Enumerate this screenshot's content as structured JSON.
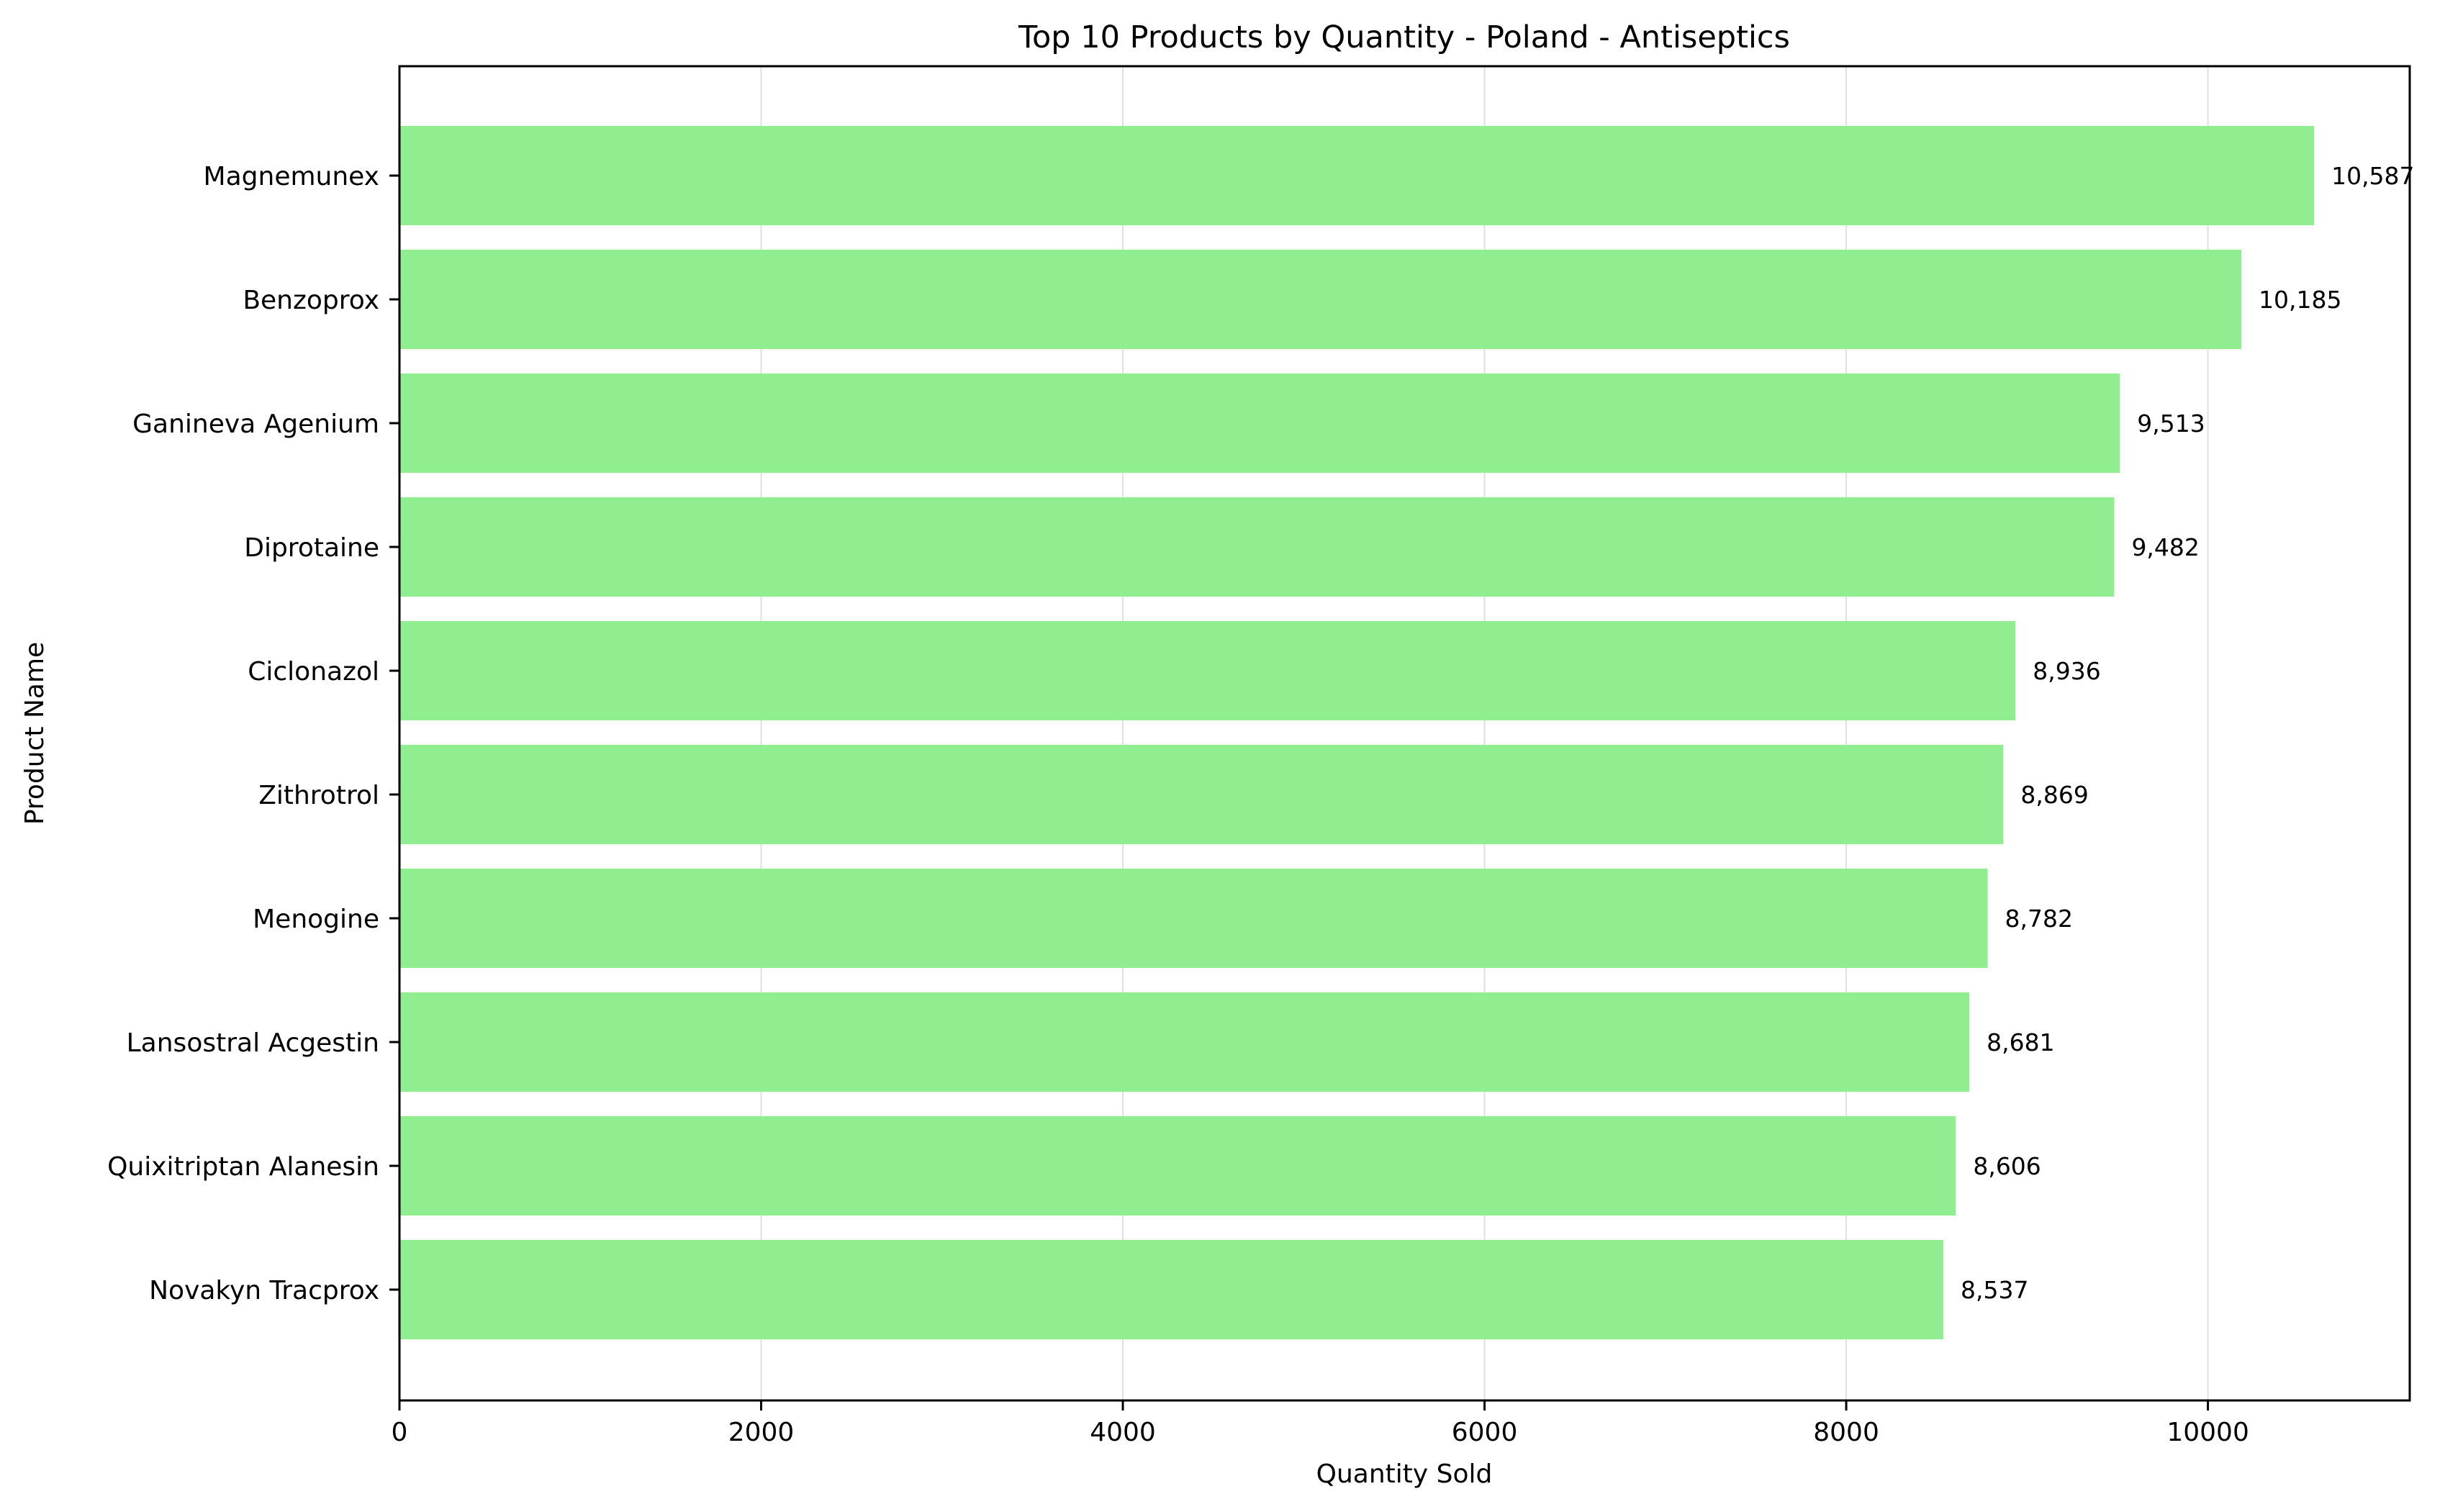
{
  "chart_data": {
    "type": "bar",
    "orientation": "horizontal",
    "title": "Top 10 Products by Quantity - Poland - Antiseptics",
    "xlabel": "Quantity Sold",
    "ylabel": "Product Name",
    "categories": [
      "Magnemunex",
      "Benzoprox",
      "Ganineva Agenium",
      "Diprotaine",
      "Ciclonazol",
      "Zithrotrol",
      "Menogine",
      "Lansostral Acgestin",
      "Quixitriptan Alanesin",
      "Novakyn Tracprox"
    ],
    "values": [
      10587,
      10185,
      9513,
      9482,
      8936,
      8869,
      8782,
      8681,
      8606,
      8537
    ],
    "value_labels": [
      "10,587",
      "10,185",
      "9,513",
      "9,482",
      "8,936",
      "8,869",
      "8,782",
      "8,681",
      "8,606",
      "8,537"
    ],
    "xlim": [
      0,
      11116
    ],
    "xticks": [
      0,
      2000,
      4000,
      6000,
      8000,
      10000
    ],
    "xtick_labels": [
      "0",
      "2000",
      "4000",
      "6000",
      "8000",
      "10000"
    ],
    "grid": "x-axis only",
    "bar_color": "#90ee90",
    "grid_color": "#e0e0e0",
    "axis_color": "#000000"
  }
}
